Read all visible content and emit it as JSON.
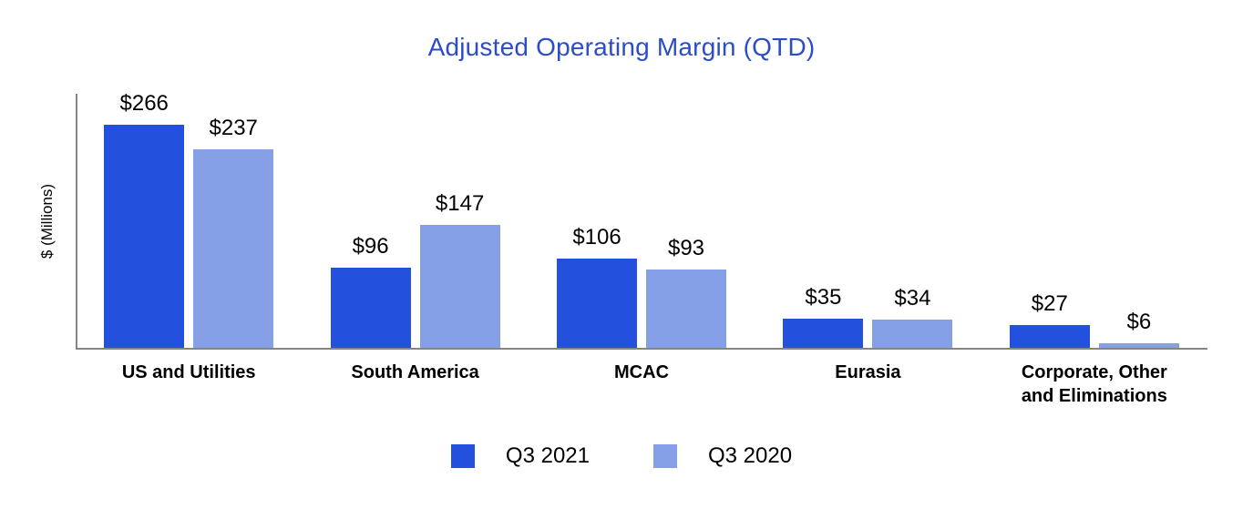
{
  "chart_data": {
    "type": "bar",
    "title": "Adjusted Operating Margin (QTD)",
    "title_color": "#2C4CC8",
    "xlabel": "",
    "ylabel": "$ (Millions)",
    "categories": [
      "US and Utilities",
      "South America",
      "MCAC",
      "Eurasia",
      "Corporate, Other and Eliminations"
    ],
    "series": [
      {
        "name": "Q3 2021",
        "color": "#2350DC",
        "values": [
          266,
          96,
          106,
          35,
          27
        ],
        "value_labels": [
          "$266",
          "$96",
          "$106",
          "$35",
          "$27"
        ]
      },
      {
        "name": "Q3 2020",
        "color": "#86A0E8",
        "values": [
          237,
          147,
          93,
          34,
          6
        ],
        "value_labels": [
          "$237",
          "$147",
          "$93",
          "$34",
          "$6"
        ]
      }
    ],
    "ylim": [
      0,
      305
    ],
    "grid": false,
    "axis_color": "#858585",
    "legend_position": "bottom"
  }
}
